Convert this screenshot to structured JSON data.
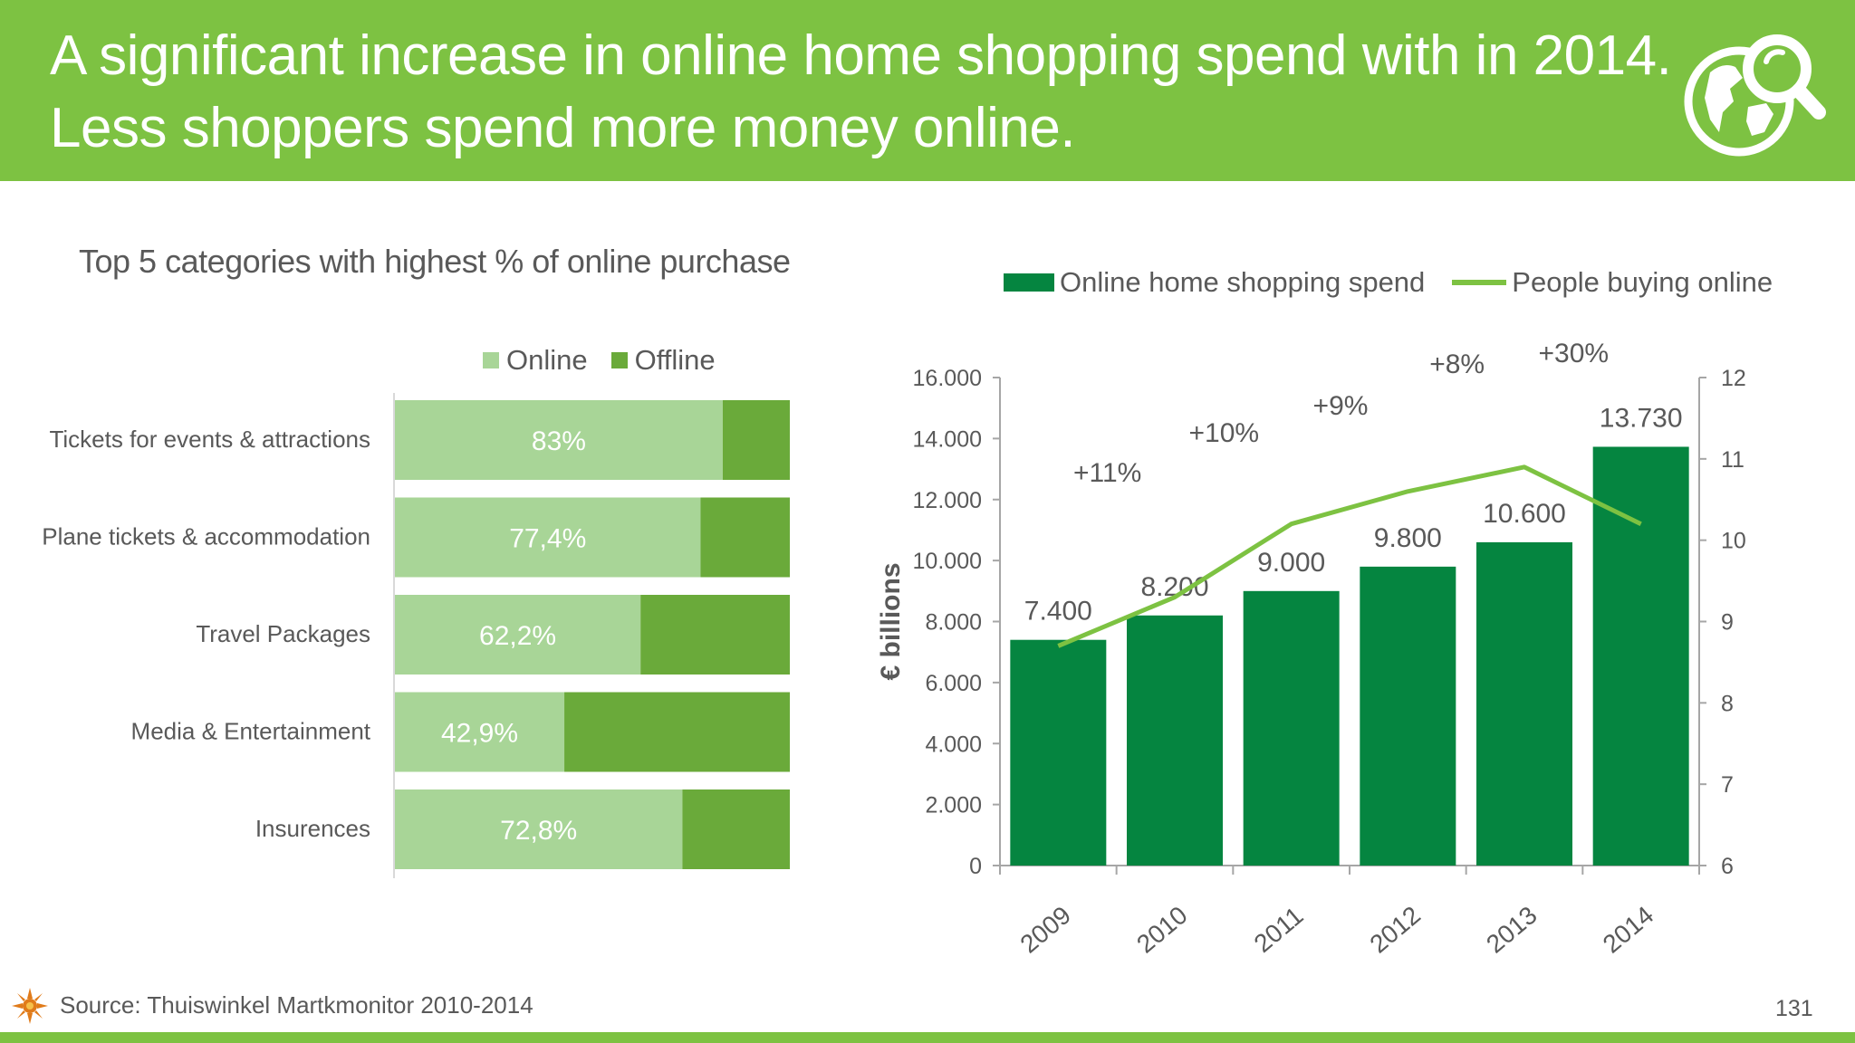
{
  "header": {
    "title_line1": "A significant increase in online home shopping spend with in 2014.",
    "title_line2": "Less shoppers spend more money online.",
    "icon": "globe-search-icon",
    "bg_color": "#7dc242"
  },
  "left_chart_title": "Top 5 categories with highest % of online purchase",
  "chart_data": [
    {
      "type": "bar",
      "orientation": "horizontal-stacked",
      "title": "Top 5 categories with highest % of online purchase",
      "categories": [
        "Tickets for events & attractions",
        "Plane tickets & accommodation",
        "Travel Packages",
        "Media & Entertainment",
        "Insurences"
      ],
      "series": [
        {
          "name": "Online",
          "values": [
            83,
            77.4,
            62.2,
            42.9,
            72.8
          ],
          "color": "#a8d597"
        },
        {
          "name": "Offline",
          "values": [
            17,
            22.6,
            37.8,
            57.1,
            27.2
          ],
          "color": "#6aaa3a"
        }
      ],
      "data_labels": [
        "83%",
        "77,4%",
        "62,2%",
        "42,9%",
        "72,8%"
      ],
      "xlim": [
        0,
        100
      ],
      "legend": "top"
    },
    {
      "type": "bar",
      "combo": "bar-line-dual-axis",
      "categories": [
        "2009",
        "2010",
        "2011",
        "2012",
        "2013",
        "2014"
      ],
      "series": [
        {
          "name": "Online home shopping spend",
          "type": "bar",
          "axis": "left",
          "values": [
            7400,
            8200,
            9000,
            9800,
            10600,
            13730
          ],
          "color": "#058540"
        },
        {
          "name": "People buying online",
          "type": "line",
          "axis": "right",
          "values": [
            8.7,
            9.3,
            10.2,
            10.6,
            10.9,
            10.2
          ],
          "color": "#7dc242"
        }
      ],
      "bar_labels": [
        "7.400",
        "8.200",
        "9.000",
        "9.800",
        "10.600",
        "13.730"
      ],
      "growth_labels": [
        "+11%",
        "+10%",
        "+9%",
        "+8%",
        "+30%"
      ],
      "ylabel": "€ billions",
      "ylim": [
        0,
        16000
      ],
      "yticks": [
        "0",
        "2.000",
        "4.000",
        "6.000",
        "8.000",
        "10.000",
        "12.000",
        "14.000",
        "16.000"
      ],
      "y2lim": [
        6,
        12
      ],
      "y2ticks": [
        "6",
        "7",
        "8",
        "9",
        "10",
        "11",
        "12"
      ],
      "legend": "top"
    }
  ],
  "footer": {
    "source": "Source: Thuiswinkel Martkmonitor 2010-2014",
    "page_number": "131"
  }
}
